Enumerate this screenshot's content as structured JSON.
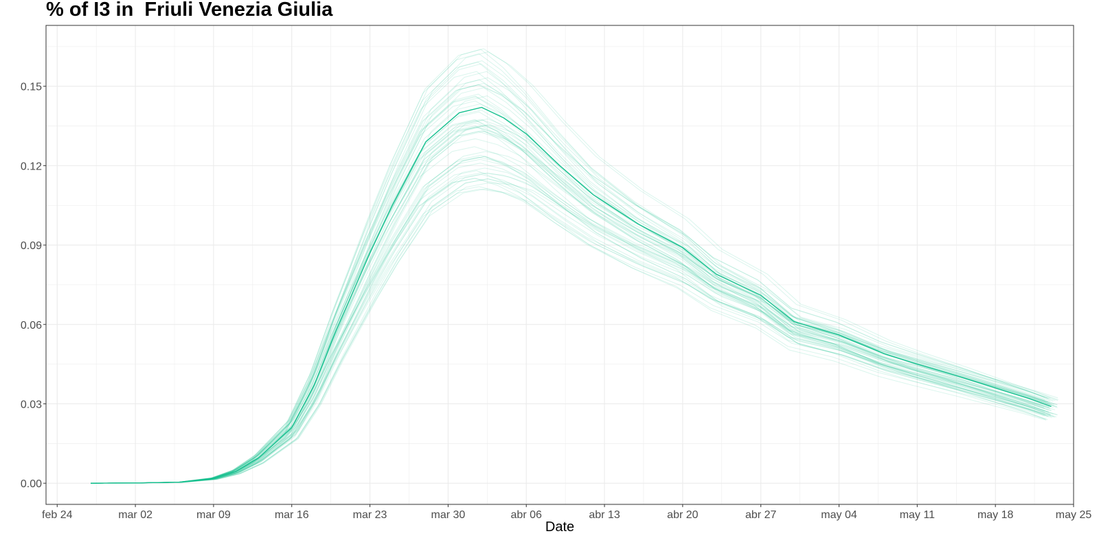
{
  "chart_data": {
    "type": "line",
    "title": "% of I3 in  Friuli Venezia Giulia",
    "xlabel": "Date",
    "ylabel": "",
    "x_ticks": [
      "feb 24",
      "mar 02",
      "mar 09",
      "mar 16",
      "mar 23",
      "mar 30",
      "abr 06",
      "abr 13",
      "abr 20",
      "abr 27",
      "may 04",
      "may 11",
      "may 18",
      "may 25"
    ],
    "y_ticks": [
      "0.00",
      "0.03",
      "0.06",
      "0.09",
      "0.12",
      "0.15"
    ],
    "xlim": [
      "2020-02-23",
      "2020-05-25"
    ],
    "ylim": [
      -0.008,
      0.173
    ],
    "grid": true,
    "legend": "none",
    "colors": {
      "series": "#16c08f",
      "grid": "#ebebeb",
      "panel_border": "#333333"
    },
    "x": [
      "2020-02-27",
      "2020-03-02",
      "2020-03-06",
      "2020-03-09",
      "2020-03-11",
      "2020-03-13",
      "2020-03-16",
      "2020-03-18",
      "2020-03-20",
      "2020-03-23",
      "2020-03-25",
      "2020-03-27",
      "2020-03-28",
      "2020-03-31",
      "2020-04-02",
      "2020-04-04",
      "2020-04-06",
      "2020-04-09",
      "2020-04-12",
      "2020-04-16",
      "2020-04-20",
      "2020-04-23",
      "2020-04-27",
      "2020-04-30",
      "2020-05-04",
      "2020-05-08",
      "2020-05-11",
      "2020-05-15",
      "2020-05-18",
      "2020-05-21",
      "2020-05-23"
    ],
    "series": [
      {
        "role": "median",
        "values": [
          0.0,
          0.0001,
          0.0004,
          0.0018,
          0.0045,
          0.0095,
          0.021,
          0.037,
          0.058,
          0.087,
          0.105,
          0.121,
          0.129,
          0.14,
          0.142,
          0.138,
          0.132,
          0.12,
          0.109,
          0.098,
          0.089,
          0.079,
          0.071,
          0.061,
          0.056,
          0.049,
          0.045,
          0.04,
          0.036,
          0.032,
          0.029
        ]
      }
    ],
    "simulation_runs": 60
  }
}
